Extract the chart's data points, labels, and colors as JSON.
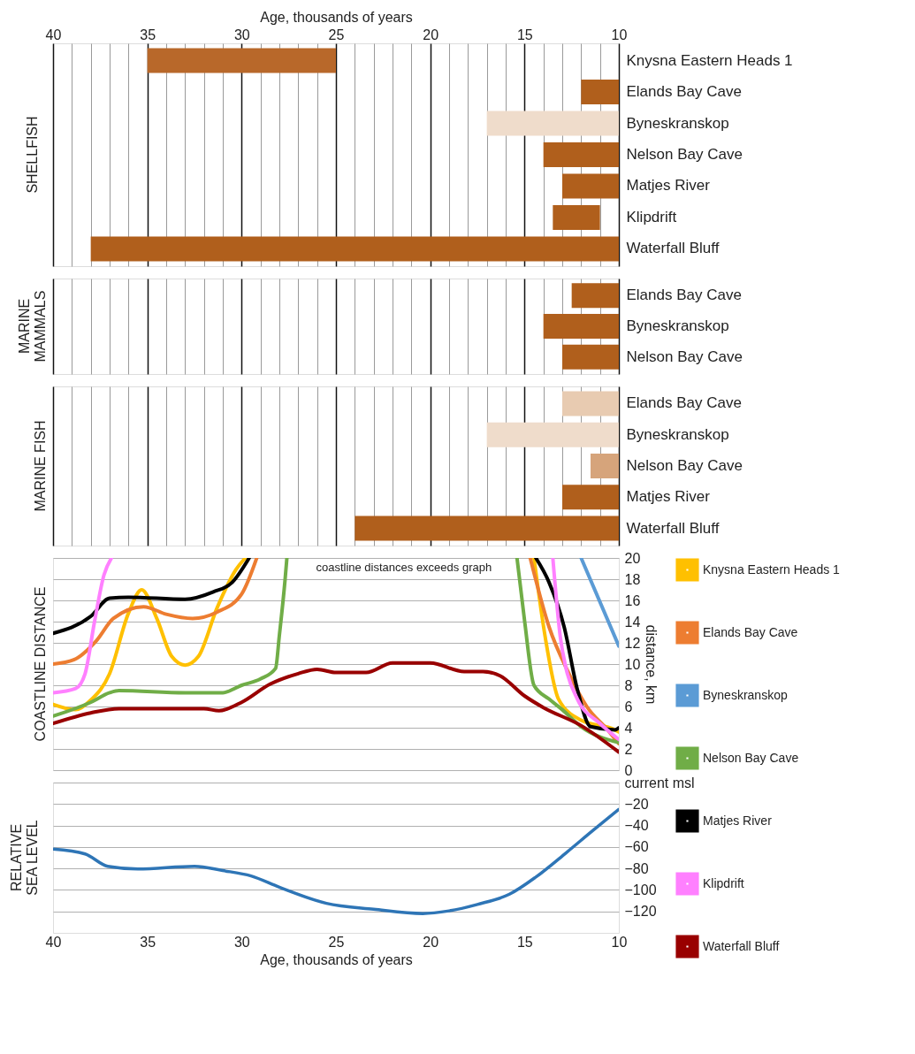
{
  "chart_data": [
    {
      "type": "bar",
      "orientation": "horizontal",
      "title": "SHELLFISH",
      "xlabel": "Age, thousands of years",
      "categories": [
        "Knysna Eastern Heads 1",
        "Elands Bay Cave",
        "Byneskranskop",
        "Nelson Bay Cave",
        "Matjes River",
        "Klipdrift",
        "Waterfall Bluff"
      ],
      "base": [
        25,
        10,
        10,
        10,
        10,
        11,
        10
      ],
      "values": [
        10,
        2,
        7,
        4,
        3,
        2.5,
        28
      ],
      "colors": [
        "#b8682a",
        "#b05f1c",
        "#efdccb",
        "#b05f1c",
        "#b05f1c",
        "#b05f1c",
        "#b05f1c"
      ],
      "xlim": [
        40,
        10
      ],
      "xticks": [
        40,
        {
          "value": 39,
          "label": null
        },
        {
          "value": 38,
          "label": null
        },
        {
          "value": 37,
          "label": null
        },
        {
          "value": 36,
          "label": null
        },
        35,
        {
          "value": 34,
          "label": null
        },
        {
          "value": 33,
          "label": null
        },
        {
          "value": 32,
          "label": null
        },
        {
          "value": 31,
          "label": null
        },
        30,
        {
          "value": 29,
          "label": null
        },
        {
          "value": 28,
          "label": null
        },
        {
          "value": 27,
          "label": null
        },
        {
          "value": 26,
          "label": null
        },
        25,
        {
          "value": 24,
          "label": null
        },
        {
          "value": 23,
          "label": null
        },
        {
          "value": 22,
          "label": null
        },
        {
          "value": 21,
          "label": null
        },
        20,
        {
          "value": 19,
          "label": null
        },
        {
          "value": 18,
          "label": null
        },
        {
          "value": 17,
          "label": null
        },
        {
          "value": 16,
          "label": null
        },
        15,
        {
          "value": 14,
          "label": null
        },
        {
          "value": 13,
          "label": null
        },
        {
          "value": 12,
          "label": null
        },
        {
          "value": 11,
          "label": null
        },
        10
      ],
      "grid": "x"
    },
    {
      "type": "bar",
      "orientation": "horizontal",
      "title": "MARINE\nMAMMALS",
      "categories": [
        "Elands Bay Cave",
        "Byneskranskop",
        "Nelson Bay Cave"
      ],
      "base": [
        10,
        10,
        10
      ],
      "values": [
        2.5,
        4,
        3
      ],
      "colors": [
        "#b05f1c",
        "#b05f1c",
        "#b05f1c"
      ],
      "xlim": [
        40,
        10
      ],
      "xticks": [
        40,
        {
          "value": 39,
          "label": null
        },
        {
          "value": 38,
          "label": null
        },
        {
          "value": 37,
          "label": null
        },
        {
          "value": 36,
          "label": null
        },
        35,
        {
          "value": 34,
          "label": null
        },
        {
          "value": 33,
          "label": null
        },
        {
          "value": 32,
          "label": null
        },
        {
          "value": 31,
          "label": null
        },
        30,
        {
          "value": 29,
          "label": null
        },
        {
          "value": 28,
          "label": null
        },
        {
          "value": 27,
          "label": null
        },
        {
          "value": 26,
          "label": null
        },
        25,
        {
          "value": 24,
          "label": null
        },
        {
          "value": 23,
          "label": null
        },
        {
          "value": 22,
          "label": null
        },
        {
          "value": 21,
          "label": null
        },
        20,
        {
          "value": 19,
          "label": null
        },
        {
          "value": 18,
          "label": null
        },
        {
          "value": 17,
          "label": null
        },
        {
          "value": 16,
          "label": null
        },
        15,
        {
          "value": 14,
          "label": null
        },
        {
          "value": 13,
          "label": null
        },
        {
          "value": 12,
          "label": null
        },
        {
          "value": 11,
          "label": null
        },
        10
      ],
      "grid": "x",
      "tick_labels": "y"
    },
    {
      "type": "bar",
      "orientation": "horizontal",
      "title": "MARINE FISH",
      "categories": [
        "Elands Bay Cave",
        "Byneskranskop",
        "Nelson Bay Cave",
        "Matjes River",
        "Waterfall Bluff"
      ],
      "base": [
        10,
        10,
        10,
        10,
        10
      ],
      "values": [
        3,
        7,
        1.5,
        3,
        14
      ],
      "colors": [
        "#e8cbb1",
        "#efdccb",
        "#d6a47b",
        "#b05f1c",
        "#b05f1c"
      ],
      "xlim": [
        40,
        10
      ],
      "xticks": [
        40,
        {
          "value": 39,
          "label": null
        },
        {
          "value": 38,
          "label": null
        },
        {
          "value": 37,
          "label": null
        },
        {
          "value": 36,
          "label": null
        },
        35,
        {
          "value": 34,
          "label": null
        },
        {
          "value": 33,
          "label": null
        },
        {
          "value": 32,
          "label": null
        },
        {
          "value": 31,
          "label": null
        },
        30,
        {
          "value": 29,
          "label": null
        },
        {
          "value": 28,
          "label": null
        },
        {
          "value": 27,
          "label": null
        },
        {
          "value": 26,
          "label": null
        },
        25,
        {
          "value": 24,
          "label": null
        },
        {
          "value": 23,
          "label": null
        },
        {
          "value": 22,
          "label": null
        },
        {
          "value": 21,
          "label": null
        },
        20,
        {
          "value": 19,
          "label": null
        },
        {
          "value": 18,
          "label": null
        },
        {
          "value": 17,
          "label": null
        },
        {
          "value": 16,
          "label": null
        },
        15,
        {
          "value": 14,
          "label": null
        },
        {
          "value": 13,
          "label": null
        },
        {
          "value": 12,
          "label": null
        },
        {
          "value": 11,
          "label": null
        },
        10
      ],
      "grid": "x",
      "tick_labels": "y"
    },
    {
      "type": "line",
      "title": "COASTLINE DISTANCE",
      "ylabel": "distance, km",
      "annotations": [
        "coastline distances exceeds graph"
      ],
      "series": [
        {
          "name": "Knysna Eastern Heads 1",
          "color": "#ffc000",
          "x": [
            40,
            38.8,
            38,
            37,
            36,
            35.3,
            34.5,
            33.7,
            33,
            32.3,
            31.3,
            30.3,
            29.8,
            22,
            14.5,
            13.9,
            13.2,
            12,
            10.2,
            10
          ],
          "values": [
            6.2,
            5.7,
            6.6,
            9.1,
            14.8,
            17,
            14.3,
            10.7,
            9.9,
            10.7,
            15.3,
            18.9,
            20,
            null,
            20,
            12.5,
            6.7,
            4.7,
            3.8,
            3.6
          ]
        },
        {
          "name": "Elands Bay Cave",
          "color": "#ed7d31",
          "x": [
            40,
            38.9,
            37.7,
            36.8,
            35.2,
            34,
            32.6,
            31.3,
            30,
            29.2,
            22,
            14.7,
            13.7,
            12.7,
            11.7,
            10.6,
            10
          ],
          "values": [
            10,
            10.4,
            12.2,
            14.3,
            15.4,
            14.7,
            14.3,
            14.9,
            16.6,
            20,
            null,
            20,
            13.5,
            9.3,
            6,
            3.8,
            2.5
          ]
        },
        {
          "name": "Byneskranskop",
          "color": "#5b9bd5",
          "x": [
            12,
            10
          ],
          "values": [
            20,
            11.7
          ]
        },
        {
          "name": "Nelson Bay Cave",
          "color": "#70ad47",
          "x": [
            40,
            38,
            37,
            36.5,
            33,
            31,
            30,
            29,
            28.2,
            28,
            27.7,
            27.6,
            22,
            15.4,
            15,
            14.5,
            13.7,
            13,
            12,
            10
          ],
          "values": [
            5.1,
            6.4,
            7.3,
            7.5,
            7.3,
            7.3,
            8,
            8.6,
            9.6,
            12.7,
            17.9,
            20,
            null,
            20,
            14.1,
            8,
            6.7,
            5.7,
            4.1,
            2.6
          ]
        },
        {
          "name": "Matjes River",
          "color": "#000000",
          "x": [
            40,
            38,
            37,
            36,
            33,
            31.5,
            30.5,
            29.6,
            22,
            14.4,
            13.7,
            12.9,
            12.2,
            11.5,
            10.2,
            10
          ],
          "values": [
            12.9,
            14.5,
            16.2,
            16.3,
            16.1,
            16.8,
            17.7,
            20,
            null,
            20,
            17.7,
            13.5,
            7.6,
            4.1,
            3.8,
            4
          ]
        },
        {
          "name": "Klipdrift",
          "color": "#ff80ff",
          "x": [
            40,
            38.8,
            38.3,
            37.8,
            37.3,
            36.9,
            22,
            13.5,
            13.1,
            12.8,
            12.2,
            11,
            10
          ],
          "values": [
            7.3,
            7.7,
            9.1,
            14,
            18.4,
            20,
            null,
            20,
            12.5,
            9.6,
            6.7,
            4.4,
            2.9
          ]
        },
        {
          "name": "Waterfall Bluff",
          "color": "#990000",
          "x": [
            40,
            38,
            36.5,
            32,
            31.2,
            30,
            28.5,
            27,
            26,
            25,
            23.4,
            22,
            20,
            18.2,
            17.2,
            16.3,
            15,
            14,
            12,
            10
          ],
          "values": [
            4.4,
            5.4,
            5.8,
            5.8,
            5.6,
            6.4,
            8.1,
            9.1,
            9.5,
            9.2,
            9.2,
            10.1,
            10.1,
            9.3,
            9.3,
            8.9,
            7,
            5.9,
            4.2,
            1.7
          ]
        }
      ],
      "xlim": [
        40,
        10
      ],
      "xticks": [
        40,
        35,
        30,
        25,
        20,
        15,
        10
      ],
      "ylim": [
        0,
        20
      ],
      "yticks": [
        0,
        2,
        4,
        6,
        8,
        10,
        12,
        14,
        16,
        18,
        20
      ],
      "grid": "y",
      "legend": "right",
      "tick_labels": "y",
      "line_style": "solid",
      "marker": "none"
    },
    {
      "type": "line",
      "title": "RELATIVE\nSEA LEVEL",
      "xlabel": "Age, thousands of years",
      "series": [
        {
          "color": "#2e75b6",
          "x": [
            40,
            38.3,
            37.1,
            35.5,
            32.5,
            31,
            29.5,
            28,
            25.5,
            23,
            20.4,
            19,
            17.5,
            15.8,
            14.4,
            12.8,
            11.4,
            10
          ],
          "values": [
            -62,
            -66.5,
            -78,
            -80.5,
            -78,
            -82,
            -87,
            -97.5,
            -112.5,
            -118,
            -122,
            -119.5,
            -113.5,
            -104,
            -88,
            -65.5,
            -45,
            -25
          ]
        }
      ],
      "xlim": [
        40,
        10
      ],
      "xticks": [
        40,
        35,
        30,
        25,
        20,
        15,
        10
      ],
      "ylim": [
        -140,
        0
      ],
      "yticks": [
        {
          "value": 0,
          "label": "current msl"
        },
        -20,
        -40,
        -60,
        -80,
        -100,
        -120
      ],
      "grid": "y",
      "line_style": "solid",
      "marker": "none"
    }
  ]
}
